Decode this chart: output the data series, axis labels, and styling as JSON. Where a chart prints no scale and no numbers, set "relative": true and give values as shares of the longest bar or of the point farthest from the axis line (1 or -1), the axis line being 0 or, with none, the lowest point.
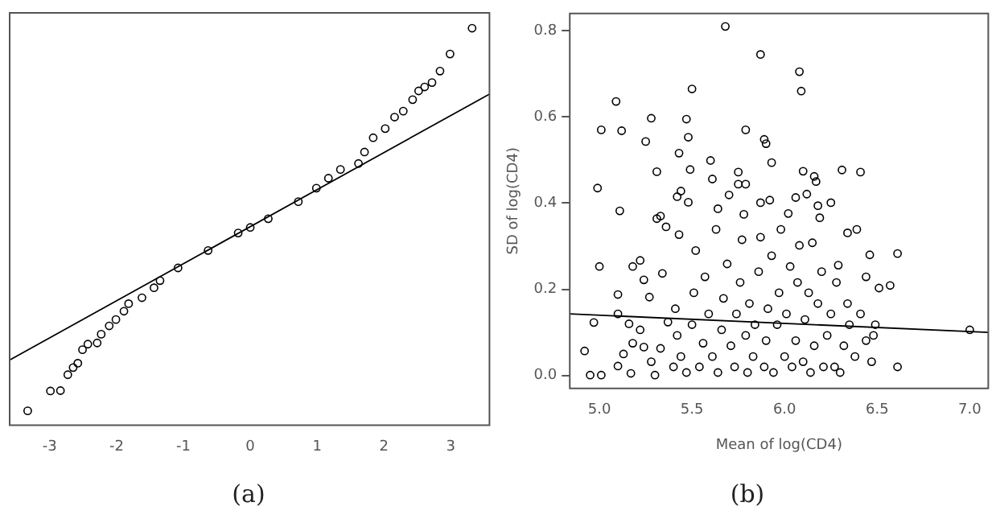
{
  "chart_data": [
    {
      "type": "scatter",
      "relative": true,
      "xlim": [
        -3.6,
        3.58
      ],
      "xticks": [
        -3,
        -2,
        -1,
        0,
        1,
        2,
        3
      ],
      "annotations": [
        "(a)"
      ],
      "series": [
        {
          "type": "scatter",
          "marker": "circle",
          "color": "#000000",
          "x": [
            -3.33,
            -2.99,
            -2.84,
            -2.73,
            -2.65,
            -2.58,
            -2.51,
            -2.43,
            -2.29,
            -2.23,
            -2.11,
            -2.01,
            -1.89,
            -1.82,
            -1.62,
            -1.44,
            -1.35,
            -1.08,
            -0.63,
            -0.18,
            0,
            0.27,
            0.72,
            0.99,
            1.17,
            1.35,
            1.62,
            1.71,
            1.84,
            2.02,
            2.16,
            2.29,
            2.43,
            2.52,
            2.61,
            2.72,
            2.84,
            2.99,
            3.32
          ],
          "values": [
            0.036,
            0.086,
            0.087,
            0.127,
            0.145,
            0.156,
            0.19,
            0.204,
            0.207,
            0.229,
            0.25,
            0.266,
            0.287,
            0.306,
            0.321,
            0.346,
            0.364,
            0.396,
            0.44,
            0.484,
            0.498,
            0.52,
            0.563,
            0.597,
            0.622,
            0.644,
            0.659,
            0.688,
            0.724,
            0.747,
            0.776,
            0.791,
            0.82,
            0.842,
            0.852,
            0.863,
            0.892,
            0.935,
            1
          ]
        },
        {
          "type": "line",
          "marker": "none",
          "color": "#000000",
          "x": [
            -3.6,
            3.58
          ],
          "values": [
            0.164,
            0.834
          ]
        }
      ]
    },
    {
      "type": "scatter",
      "xlabel": "Mean of log(CD4)",
      "ylabel": "SD of log(CD4)",
      "xlim": [
        4.84,
        7.1
      ],
      "xticks": [
        {
          "value": 5,
          "label": "5.0"
        },
        5.5,
        {
          "value": 6,
          "label": "6.0"
        },
        6.5,
        {
          "value": 7,
          "label": "7.0"
        }
      ],
      "ylim": [
        -0.03,
        0.84
      ],
      "yticks": [
        {
          "value": 0,
          "label": "0.0"
        },
        0.2,
        0.4,
        0.6,
        0.8
      ],
      "annotations": [
        "(b)"
      ],
      "series": [
        {
          "type": "scatter",
          "marker": "circle",
          "color": "#000000",
          "x": [
            5.68,
            5.87,
            6.08,
            6.09,
            5.5,
            5.09,
            5.28,
            5.47,
            5.01,
            5.12,
            5.79,
            5.48,
            5.25,
            5.89,
            5.9,
            5.43,
            5.6,
            5.93,
            5.49,
            5.31,
            5.75,
            6.1,
            6.31,
            6.41,
            6.16,
            6.17,
            5.61,
            5.75,
            5.79,
            4.99,
            5.44,
            5.42,
            5.7,
            6.12,
            6.06,
            5.48,
            5.64,
            5.11,
            5.87,
            5.92,
            6.25,
            6.18,
            5.78,
            5.31,
            5.33,
            6.02,
            6.19,
            5.36,
            5.43,
            6.39,
            6.34,
            6.15,
            6.61,
            6.46,
            5,
            5.18,
            5.22,
            6.29,
            5.24,
            5.34,
            5.1,
            5.27,
            6.57,
            6.51,
            6.44,
            4.97,
            5.1,
            5.16,
            4.92,
            4.95,
            5.01,
            5.1,
            5.17,
            5.13,
            5.18,
            5.22,
            5.24,
            5.28,
            5.3,
            5.33,
            5.37,
            5.4,
            5.41,
            5.42,
            5.44,
            5.47,
            5.5,
            5.51,
            5.52,
            5.54,
            5.56,
            5.57,
            5.59,
            5.61,
            5.63,
            5.64,
            5.66,
            5.67,
            5.69,
            5.71,
            5.73,
            5.74,
            5.76,
            5.77,
            5.79,
            5.8,
            5.81,
            5.83,
            5.84,
            5.86,
            5.87,
            5.89,
            5.9,
            5.91,
            5.93,
            5.94,
            5.96,
            5.97,
            5.98,
            6,
            6.01,
            6.03,
            6.04,
            6.06,
            6.07,
            6.08,
            6.1,
            6.11,
            6.13,
            6.14,
            6.16,
            6.18,
            6.2,
            6.21,
            6.23,
            6.25,
            6.27,
            6.28,
            6.3,
            6.32,
            6.34,
            6.35,
            6.38,
            6.41,
            6.44,
            6.47,
            6.48,
            6.49,
            6.61,
            7
          ],
          "values": [
            0.81,
            0.745,
            0.705,
            0.66,
            0.665,
            0.636,
            0.597,
            0.595,
            0.57,
            0.568,
            0.57,
            0.553,
            0.543,
            0.548,
            0.538,
            0.516,
            0.499,
            0.494,
            0.478,
            0.473,
            0.472,
            0.474,
            0.477,
            0.472,
            0.462,
            0.45,
            0.456,
            0.444,
            0.444,
            0.435,
            0.428,
            0.415,
            0.419,
            0.421,
            0.413,
            0.402,
            0.387,
            0.382,
            0.401,
            0.407,
            0.401,
            0.394,
            0.374,
            0.364,
            0.37,
            0.376,
            0.366,
            0.345,
            0.327,
            0.339,
            0.331,
            0.308,
            0.283,
            0.28,
            0.253,
            0.253,
            0.267,
            0.256,
            0.222,
            0.237,
            0.188,
            0.182,
            0.209,
            0.203,
            0.229,
            0.123,
            0.143,
            0.12,
            0.057,
            0.001,
            0.001,
            0.022,
            0.005,
            0.05,
            0.075,
            0.106,
            0.066,
            0.032,
            0.001,
            0.063,
            0.124,
            0.02,
            0.155,
            0.093,
            0.044,
            0.007,
            0.118,
            0.192,
            0.29,
            0.02,
            0.075,
            0.229,
            0.143,
            0.044,
            0.339,
            0.007,
            0.106,
            0.179,
            0.259,
            0.069,
            0.02,
            0.143,
            0.216,
            0.315,
            0.093,
            0.007,
            0.167,
            0.044,
            0.118,
            0.241,
            0.321,
            0.02,
            0.081,
            0.155,
            0.278,
            0.007,
            0.118,
            0.192,
            0.339,
            0.044,
            0.143,
            0.253,
            0.02,
            0.081,
            0.216,
            0.302,
            0.032,
            0.13,
            0.192,
            0.007,
            0.069,
            0.167,
            0.241,
            0.02,
            0.093,
            0.143,
            0.02,
            0.216,
            0.007,
            0.069,
            0.167,
            0.118,
            0.044,
            0.143,
            0.081,
            0.032,
            0.093,
            0.118,
            0.02,
            0.106
          ]
        },
        {
          "type": "line",
          "marker": "none",
          "color": "#000000",
          "x": [
            4.84,
            7.1
          ],
          "values": [
            0.143,
            0.1
          ]
        }
      ]
    }
  ]
}
